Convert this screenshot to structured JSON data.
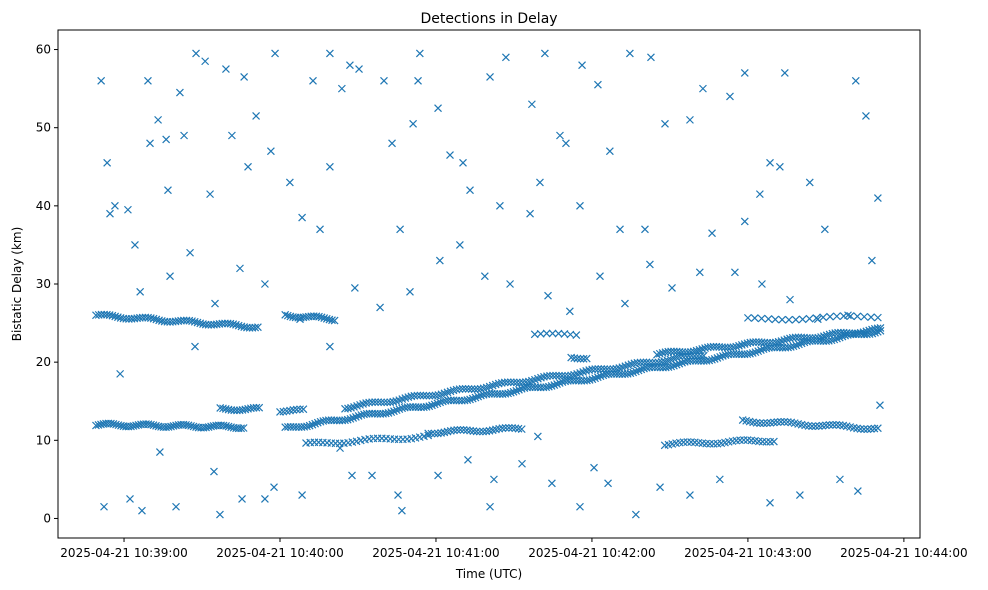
{
  "chart_data": {
    "type": "scatter",
    "title": "Detections in Delay",
    "xlabel": "Time (UTC)",
    "ylabel": "Bistatic Delay (km)",
    "x_units": "seconds after 2025-04-21 10:39:00 UTC",
    "xlim": [
      -25.4,
      306.2
    ],
    "ylim": [
      -2.5,
      62.5
    ],
    "x_ticks": [
      {
        "value": 0,
        "label": "2025-04-21 10:39:00"
      },
      {
        "value": 60,
        "label": "2025-04-21 10:40:00"
      },
      {
        "value": 120,
        "label": "2025-04-21 10:41:00"
      },
      {
        "value": 180,
        "label": "2025-04-21 10:42:00"
      },
      {
        "value": 240,
        "label": "2025-04-21 10:43:00"
      },
      {
        "value": 300,
        "label": "2025-04-21 10:44:00"
      }
    ],
    "y_ticks": [
      {
        "value": 0,
        "label": "0"
      },
      {
        "value": 10,
        "label": "10"
      },
      {
        "value": 20,
        "label": "20"
      },
      {
        "value": 30,
        "label": "30"
      },
      {
        "value": 40,
        "label": "40"
      },
      {
        "value": 50,
        "label": "50"
      },
      {
        "value": 60,
        "label": "60"
      }
    ],
    "grid": false,
    "marker": "x",
    "color": "#1f77b4",
    "tracks": [
      {
        "t": [
          -10.8,
          51.5
        ],
        "y": [
          26,
          24.5
        ],
        "n": 60
      },
      {
        "t": [
          62,
          81
        ],
        "y": [
          26,
          25.5
        ],
        "n": 20
      },
      {
        "t": [
          -10.8,
          46
        ],
        "y": [
          12,
          11.7
        ],
        "n": 60
      },
      {
        "t": [
          37,
          52
        ],
        "y": [
          14,
          14
        ],
        "n": 15
      },
      {
        "t": [
          60,
          69
        ],
        "y": [
          13.8,
          13.8
        ],
        "n": 8
      },
      {
        "t": [
          62,
          291
        ],
        "y": [
          11.5,
          24
        ],
        "n": 220
      },
      {
        "t": [
          85,
          223
        ],
        "y": [
          14.2,
          21
        ],
        "n": 120
      },
      {
        "t": [
          70,
          117
        ],
        "y": [
          9.5,
          10.5
        ],
        "n": 30
      },
      {
        "t": [
          117,
          153
        ],
        "y": [
          11,
          11.5
        ],
        "n": 30
      },
      {
        "t": [
          158,
          174
        ],
        "y": [
          23.5,
          23.5
        ],
        "n": 8
      },
      {
        "t": [
          172,
          178
        ],
        "y": [
          20.6,
          20.6
        ],
        "n": 6
      },
      {
        "t": [
          205,
          291
        ],
        "y": [
          21,
          24.2
        ],
        "n": 80
      },
      {
        "t": [
          238,
          290
        ],
        "y": [
          12.5,
          11.5
        ],
        "n": 40
      },
      {
        "t": [
          208,
          250
        ],
        "y": [
          9.5,
          10
        ],
        "n": 30
      },
      {
        "t": [
          240,
          290
        ],
        "y": [
          25.5,
          25.8
        ],
        "n": 20
      }
    ],
    "points": [
      [
        -8.8,
        56
      ],
      [
        -6.5,
        45.5
      ],
      [
        -5.4,
        39
      ],
      [
        -3.5,
        40
      ],
      [
        1.5,
        39.5
      ],
      [
        4.2,
        35
      ],
      [
        9.2,
        56
      ],
      [
        10,
        48
      ],
      [
        13.1,
        51
      ],
      [
        16.2,
        48.5
      ],
      [
        16.9,
        42
      ],
      [
        21.5,
        54.5
      ],
      [
        23.1,
        49
      ],
      [
        27.7,
        59.5
      ],
      [
        31.2,
        58.5
      ],
      [
        33.1,
        41.5
      ],
      [
        39.2,
        57.5
      ],
      [
        41.5,
        49
      ],
      [
        46.2,
        56.5
      ],
      [
        47.7,
        45
      ],
      [
        50.8,
        51.5
      ],
      [
        58.1,
        59.5
      ],
      [
        56.5,
        47
      ],
      [
        63.8,
        43
      ],
      [
        68.5,
        38.5
      ],
      [
        72.7,
        56
      ],
      [
        79.2,
        59.5
      ],
      [
        83.8,
        55
      ],
      [
        86.9,
        58
      ],
      [
        90.4,
        57.5
      ],
      [
        100,
        56
      ],
      [
        103.1,
        48
      ],
      [
        111.2,
        50.5
      ],
      [
        113.1,
        56
      ],
      [
        113.8,
        59.5
      ],
      [
        120.8,
        52.5
      ],
      [
        125.4,
        46.5
      ],
      [
        130.4,
        45.5
      ],
      [
        140.8,
        56.5
      ],
      [
        146.9,
        59
      ],
      [
        156.9,
        53
      ],
      [
        161.9,
        59.5
      ],
      [
        170,
        48
      ],
      [
        176.2,
        58
      ],
      [
        182.3,
        55.5
      ],
      [
        194.6,
        59.5
      ],
      [
        202.7,
        59
      ],
      [
        208.1,
        50.5
      ],
      [
        217.7,
        51
      ],
      [
        222.7,
        55
      ],
      [
        233.1,
        54
      ],
      [
        238.8,
        57
      ],
      [
        244.6,
        41.5
      ],
      [
        248.5,
        45.5
      ],
      [
        254.2,
        57
      ],
      [
        263.8,
        43
      ],
      [
        269.6,
        37
      ],
      [
        281.5,
        56
      ],
      [
        285.4,
        51.5
      ],
      [
        290,
        41
      ],
      [
        -1.5,
        18.5
      ],
      [
        2.3,
        2.5
      ],
      [
        6.9,
        1
      ],
      [
        13.8,
        8.5
      ],
      [
        20,
        1.5
      ],
      [
        27.3,
        22
      ],
      [
        34.6,
        6
      ],
      [
        36.9,
        0.5
      ],
      [
        45.4,
        2.5
      ],
      [
        54.2,
        2.5
      ],
      [
        57.7,
        4
      ],
      [
        68.5,
        3
      ],
      [
        75.4,
        37
      ],
      [
        83.1,
        9
      ],
      [
        87.7,
        5.5
      ],
      [
        95.4,
        5.5
      ],
      [
        105.4,
        3
      ],
      [
        106.9,
        1
      ],
      [
        120.8,
        5.5
      ],
      [
        132.3,
        7.5
      ],
      [
        140.8,
        1.5
      ],
      [
        142.3,
        5
      ],
      [
        153.1,
        7
      ],
      [
        159.2,
        10.5
      ],
      [
        164.6,
        4.5
      ],
      [
        175.4,
        1.5
      ],
      [
        180.8,
        6.5
      ],
      [
        186.2,
        4.5
      ],
      [
        196.9,
        0.5
      ],
      [
        206.2,
        4
      ],
      [
        217.7,
        3
      ],
      [
        229.2,
        5
      ],
      [
        248.5,
        2
      ],
      [
        260,
        3
      ],
      [
        275.4,
        5
      ],
      [
        282.3,
        3.5
      ],
      [
        290.8,
        14.5
      ],
      [
        6.2,
        29
      ],
      [
        17.7,
        31
      ],
      [
        25.4,
        34
      ],
      [
        35,
        27.5
      ],
      [
        44.6,
        32
      ],
      [
        54.2,
        30
      ],
      [
        67.7,
        25.5
      ],
      [
        79.2,
        22
      ],
      [
        88.8,
        29.5
      ],
      [
        98.5,
        27
      ],
      [
        110,
        29
      ],
      [
        121.5,
        33
      ],
      [
        129.2,
        35
      ],
      [
        138.8,
        31
      ],
      [
        148.5,
        30
      ],
      [
        163.1,
        28.5
      ],
      [
        171.5,
        26.5
      ],
      [
        183.1,
        31
      ],
      [
        192.7,
        27.5
      ],
      [
        202.3,
        32.5
      ],
      [
        210.8,
        29.5
      ],
      [
        221.5,
        31.5
      ],
      [
        235,
        31.5
      ],
      [
        245.4,
        30
      ],
      [
        256.2,
        28
      ],
      [
        266.9,
        25.5
      ],
      [
        278.5,
        26
      ],
      [
        287.7,
        33
      ],
      [
        106.2,
        37
      ],
      [
        133.1,
        42
      ],
      [
        144.6,
        40
      ],
      [
        160,
        43
      ],
      [
        175.4,
        40
      ],
      [
        190.8,
        37
      ],
      [
        200.4,
        37
      ],
      [
        226.2,
        36.5
      ],
      [
        238.8,
        38
      ],
      [
        252.3,
        45
      ],
      [
        -7.7,
        1.5
      ],
      [
        156.2,
        39
      ],
      [
        167.7,
        49
      ],
      [
        186.9,
        47
      ],
      [
        79.2,
        45
      ]
    ]
  }
}
